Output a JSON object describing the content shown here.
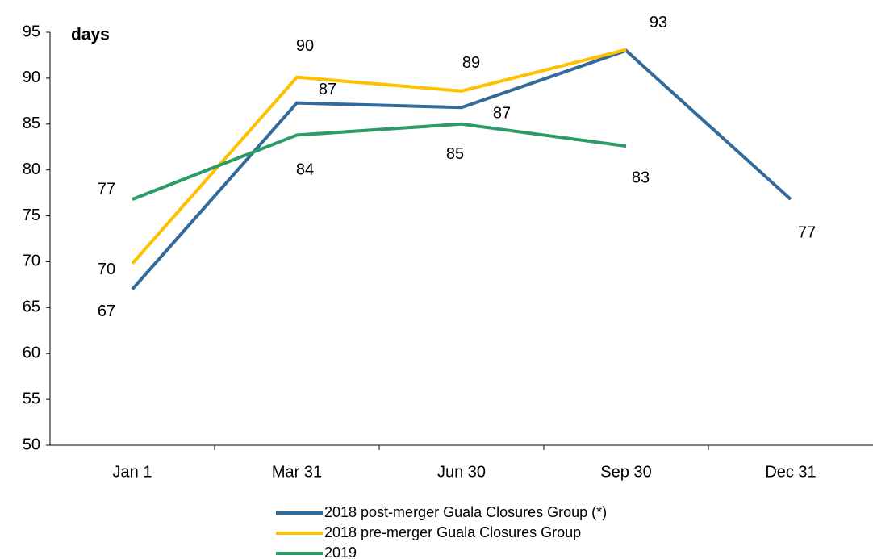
{
  "chart_data": {
    "type": "line",
    "y_label": "days",
    "categories": [
      "Jan 1",
      "Mar 31",
      "Jun 30",
      "Sep 30",
      "Dec 31"
    ],
    "series": [
      {
        "name": "2018 post-merger Guala Closures Group (*)",
        "color": "#336a99",
        "values": [
          67.0,
          87.3,
          86.8,
          93.0,
          76.8
        ],
        "value_labels": [
          "67",
          "87",
          "87",
          "93",
          "77"
        ]
      },
      {
        "name": "2018 pre-merger Guala Closures Group",
        "color": "#ffc000",
        "values": [
          69.8,
          90.1,
          88.6,
          93.1,
          null
        ],
        "value_labels": [
          "70",
          "90",
          "89",
          null,
          null
        ]
      },
      {
        "name": "2019",
        "color": "#2e9a68",
        "values": [
          76.8,
          83.8,
          85.0,
          82.6,
          null
        ],
        "value_labels": [
          "77",
          "84",
          "85",
          "83",
          null
        ]
      }
    ],
    "ylim": [
      50,
      95
    ],
    "yticks": [
      50,
      55,
      60,
      65,
      70,
      75,
      80,
      85,
      90,
      95
    ],
    "grid": false
  }
}
